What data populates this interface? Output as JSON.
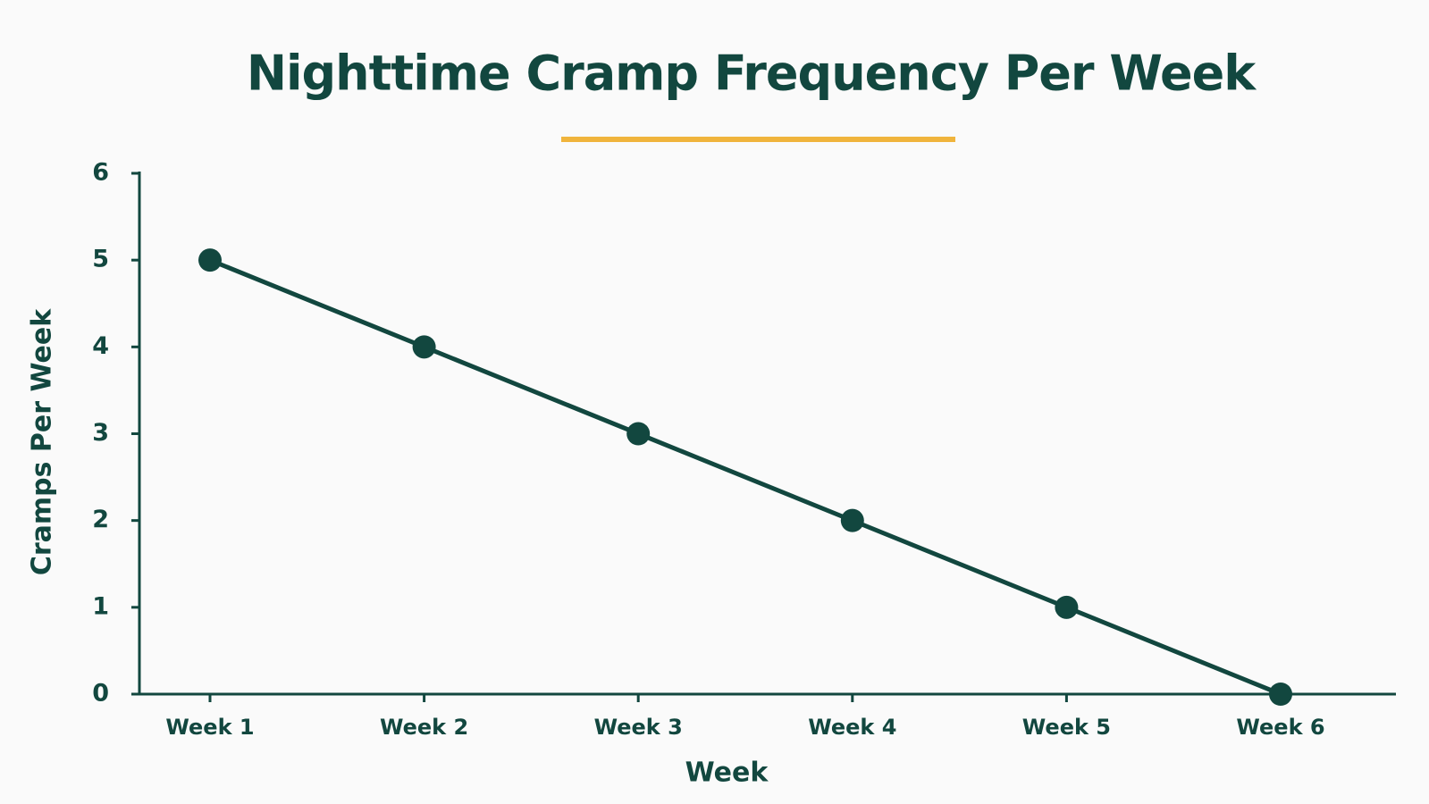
{
  "chart_data": {
    "type": "line",
    "title": "Nighttime Cramp Frequency Per Week",
    "x_label": "Week",
    "y_label": "Cramps Per Week",
    "categories": [
      "Week 1",
      "Week 2",
      "Week 3",
      "Week 4",
      "Week 5",
      "Week 6"
    ],
    "series": [
      {
        "name": "Cramps Per Week",
        "color": "#12473f",
        "values": [
          5,
          4,
          3,
          2,
          1,
          0
        ]
      }
    ],
    "ylim": [
      0,
      6
    ],
    "yticks": [
      0,
      1,
      2,
      3,
      4,
      5,
      6
    ],
    "grid": false
  }
}
